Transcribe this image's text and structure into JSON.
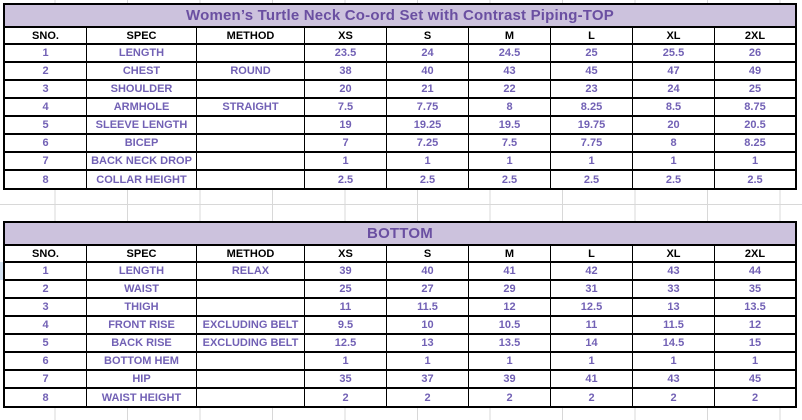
{
  "colors": {
    "band_background": "#CCC2DD",
    "title_text": "#6A4FA1",
    "value_text": "#7261B5",
    "table_border": "#000000",
    "sheet_gridline": "#D8D8D8"
  },
  "top_table": {
    "title": "Women’s Turtle Neck Co-ord Set with Contrast Piping-TOP",
    "columns": [
      "SNO.",
      "SPEC",
      "METHOD",
      "XS",
      "S",
      "M",
      "L",
      "XL",
      "2XL"
    ],
    "rows": [
      {
        "sno": "1",
        "spec": "LENGTH",
        "method": "",
        "values": [
          "23.5",
          "24",
          "24.5",
          "25",
          "25.5",
          "26"
        ]
      },
      {
        "sno": "2",
        "spec": "CHEST",
        "method": "ROUND",
        "values": [
          "38",
          "40",
          "43",
          "45",
          "47",
          "49"
        ]
      },
      {
        "sno": "3",
        "spec": "SHOULDER",
        "method": "",
        "values": [
          "20",
          "21",
          "22",
          "23",
          "24",
          "25"
        ]
      },
      {
        "sno": "4",
        "spec": "ARMHOLE",
        "method": "STRAIGHT",
        "values": [
          "7.5",
          "7.75",
          "8",
          "8.25",
          "8.5",
          "8.75"
        ]
      },
      {
        "sno": "5",
        "spec": "SLEEVE LENGTH",
        "method": "",
        "values": [
          "19",
          "19.25",
          "19.5",
          "19.75",
          "20",
          "20.5"
        ]
      },
      {
        "sno": "6",
        "spec": "BICEP",
        "method": "",
        "values": [
          "7",
          "7.25",
          "7.5",
          "7.75",
          "8",
          "8.25"
        ]
      },
      {
        "sno": "7",
        "spec": "BACK NECK DROP",
        "method": "",
        "values": [
          "1",
          "1",
          "1",
          "1",
          "1",
          "1"
        ]
      },
      {
        "sno": "8",
        "spec": "COLLAR HEIGHT",
        "method": "",
        "values": [
          "2.5",
          "2.5",
          "2.5",
          "2.5",
          "2.5",
          "2.5"
        ]
      }
    ]
  },
  "bottom_table": {
    "title": "BOTTOM",
    "columns": [
      "SNO.",
      "SPEC",
      "METHOD",
      "XS",
      "S",
      "M",
      "L",
      "XL",
      "2XL"
    ],
    "rows": [
      {
        "sno": "1",
        "spec": "LENGTH",
        "method": "RELAX",
        "values": [
          "39",
          "40",
          "41",
          "42",
          "43",
          "44"
        ]
      },
      {
        "sno": "2",
        "spec": "WAIST",
        "method": "",
        "values": [
          "25",
          "27",
          "29",
          "31",
          "33",
          "35"
        ]
      },
      {
        "sno": "3",
        "spec": "THIGH",
        "method": "",
        "values": [
          "11",
          "11.5",
          "12",
          "12.5",
          "13",
          "13.5"
        ]
      },
      {
        "sno": "4",
        "spec": "FRONT RISE",
        "method": "EXCLUDING BELT",
        "values": [
          "9.5",
          "10",
          "10.5",
          "11",
          "11.5",
          "12"
        ]
      },
      {
        "sno": "5",
        "spec": "BACK RISE",
        "method": "EXCLUDING BELT",
        "values": [
          "12.5",
          "13",
          "13.5",
          "14",
          "14.5",
          "15"
        ]
      },
      {
        "sno": "6",
        "spec": "BOTTOM HEM",
        "method": "",
        "values": [
          "1",
          "1",
          "1",
          "1",
          "1",
          "1"
        ]
      },
      {
        "sno": "7",
        "spec": "HIP",
        "method": "",
        "values": [
          "35",
          "37",
          "39",
          "41",
          "43",
          "45"
        ]
      },
      {
        "sno": "8",
        "spec": "WAIST HEIGHT",
        "method": "",
        "values": [
          "2",
          "2",
          "2",
          "2",
          "2",
          "2"
        ]
      }
    ]
  }
}
